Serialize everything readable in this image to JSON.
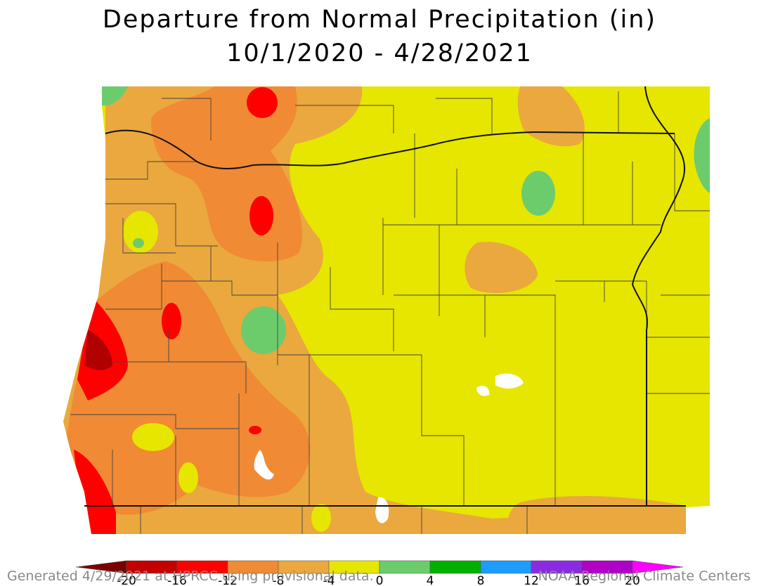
{
  "title_line1": "Departure from Normal Precipitation (in)",
  "title_line2": "10/1/2020 - 4/28/2021",
  "footer_left": "Generated 4/29/2021 at HPRCC using provisional data.",
  "footer_right": "NOAA Regional Climate Centers",
  "legend": {
    "ticks": [
      "-20",
      "-16",
      "-12",
      "-8",
      "-4",
      "0",
      "4",
      "8",
      "12",
      "16",
      "20"
    ],
    "colors": [
      "#7a0000",
      "#c40000",
      "#ff0000",
      "#f08a34",
      "#eaa83e",
      "#e6e600",
      "#6ccc6c",
      "#00b000",
      "#1e9bff",
      "#8a2be2",
      "#b000c8",
      "#ff00ff"
    ]
  },
  "colors": {
    "background_yellow": "#e6e600",
    "light_orange": "#eaa83e",
    "orange": "#f08a34",
    "red": "#ff0000",
    "dark_red": "#b00000",
    "light_green": "#6ccc6c",
    "mid_green": "#54b854",
    "boundary": "#333333"
  }
}
